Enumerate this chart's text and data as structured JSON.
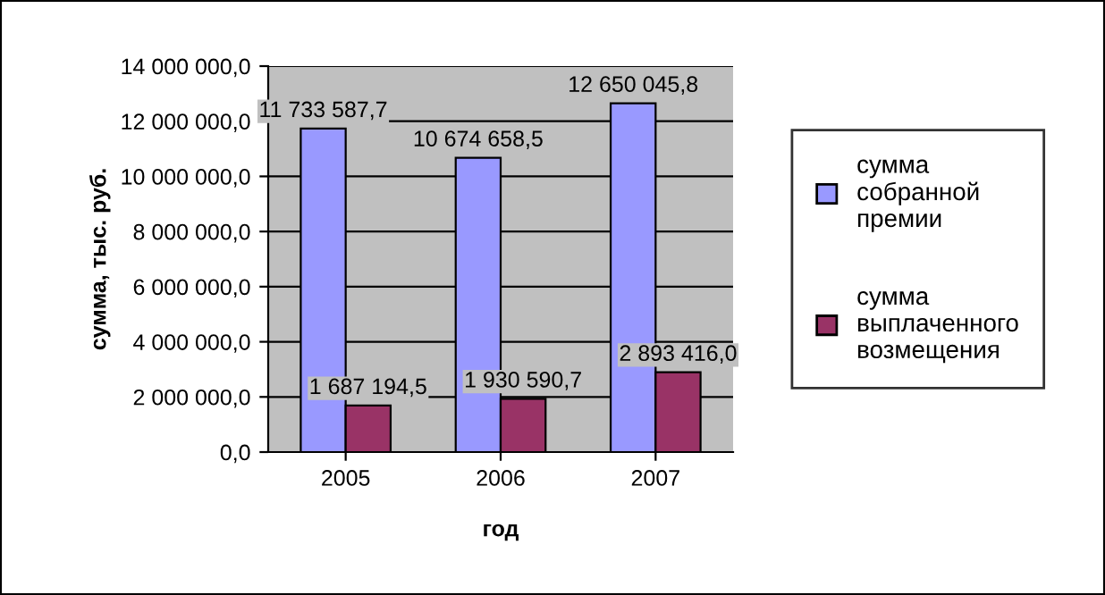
{
  "chart_data": {
    "type": "bar",
    "xlabel": "год",
    "ylabel": "сумма, тыс. руб.",
    "categories": [
      "2005",
      "2006",
      "2007"
    ],
    "series": [
      {
        "name": "сумма собранной премии",
        "color": "#9999ff",
        "values": [
          11733587.7,
          10674658.5,
          12650045.8
        ],
        "value_labels": [
          "11 733 587,7",
          "10 674 658,5",
          "12 650 045,8"
        ]
      },
      {
        "name": "сумма выплаченного возмещения",
        "color": "#993366",
        "values": [
          1687194.5,
          1930590.7,
          2893416.0
        ],
        "value_labels": [
          "1 687 194,5",
          "1 930 590,7",
          "2 893 416,0"
        ]
      }
    ],
    "ylim": [
      0,
      14000000
    ],
    "yticks": [
      {
        "value": 0,
        "label": "0,0"
      },
      {
        "value": 2000000,
        "label": "2 000 000,0"
      },
      {
        "value": 4000000,
        "label": "4 000 000,0"
      },
      {
        "value": 6000000,
        "label": "6 000 000,0"
      },
      {
        "value": 8000000,
        "label": "8 000 000,0"
      },
      {
        "value": 10000000,
        "label": "10 000 000,0"
      },
      {
        "value": 12000000,
        "label": "12 000 000,0"
      },
      {
        "value": 14000000,
        "label": "14 000 000,0"
      }
    ],
    "grid": "y",
    "legend": "right"
  }
}
